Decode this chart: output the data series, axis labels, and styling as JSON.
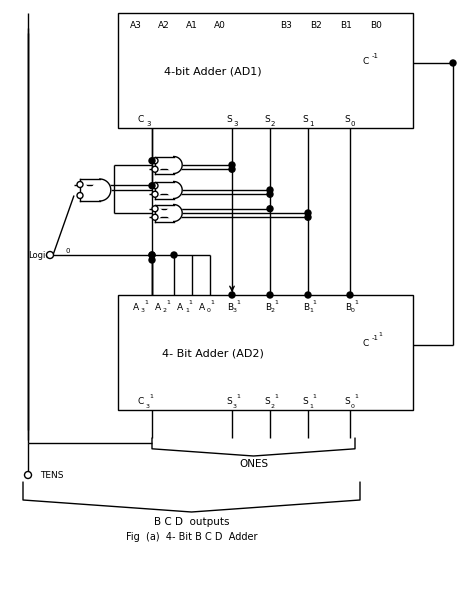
{
  "bg_color": "#ffffff",
  "line_color": "#000000",
  "title": "Fig  (a)  4- Bit B C D  Adder",
  "subtitle": "B C D  outputs",
  "ones_label": "ONES",
  "tens_label": "TENS",
  "ad1_label": "4-bit Adder (AD1)",
  "ad2_label": "4- Bit Adder (AD2)",
  "figsize": [
    4.74,
    6.01
  ],
  "dpi": 100
}
